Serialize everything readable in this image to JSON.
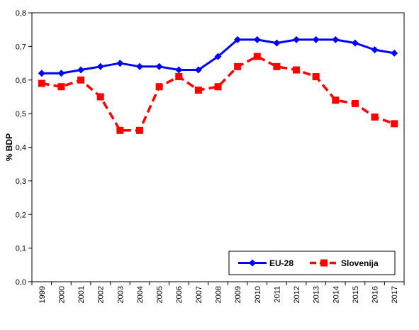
{
  "chart_data": {
    "type": "line",
    "categories": [
      "1999",
      "2000",
      "2001",
      "2002",
      "2003",
      "2004",
      "2005",
      "2006",
      "2007",
      "2008",
      "2009",
      "2010",
      "2011",
      "2012",
      "2013",
      "2014",
      "2015",
      "2016",
      "2017"
    ],
    "series": [
      {
        "name": "EU-28",
        "color": "#0000FF",
        "marker": "diamond",
        "line_style": "solid",
        "values": [
          0.62,
          0.62,
          0.63,
          0.64,
          0.65,
          0.64,
          0.64,
          0.63,
          0.63,
          0.67,
          0.72,
          0.72,
          0.71,
          0.72,
          0.72,
          0.72,
          0.71,
          0.69,
          0.68
        ]
      },
      {
        "name": "Slovenija",
        "color": "#FF0000",
        "marker": "square",
        "line_style": "dashed",
        "values": [
          0.59,
          0.58,
          0.6,
          0.55,
          0.45,
          0.45,
          0.58,
          0.61,
          0.57,
          0.58,
          0.64,
          0.67,
          0.64,
          0.63,
          0.61,
          0.54,
          0.53,
          0.49,
          0.47
        ]
      }
    ],
    "ylabel": "% BDP",
    "xlabel": "",
    "ylim": [
      0,
      0.8
    ],
    "yticks": [
      "0,0",
      "0,1",
      "0,2",
      "0,3",
      "0,4",
      "0,5",
      "0,6",
      "0,7",
      "0,8"
    ],
    "grid": false,
    "legend_position": "bottom-right"
  }
}
